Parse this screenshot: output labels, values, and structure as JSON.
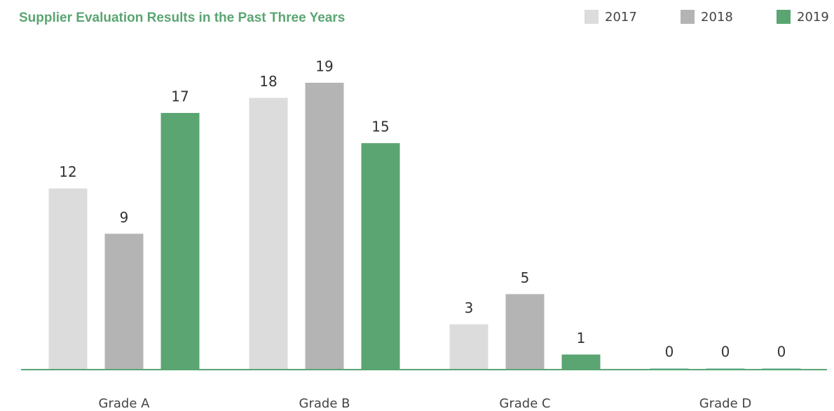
{
  "chart_data": {
    "type": "bar",
    "title": "Supplier Evaluation Results in the Past Three Years",
    "categories": [
      "Grade A",
      "Grade B",
      "Grade C",
      "Grade D"
    ],
    "series": [
      {
        "name": "2017",
        "color": "#dcdcdc",
        "values": [
          12,
          18,
          3,
          0
        ]
      },
      {
        "name": "2018",
        "color": "#b4b4b4",
        "values": [
          9,
          19,
          5,
          0
        ]
      },
      {
        "name": "2019",
        "color": "#5aa572",
        "values": [
          17,
          15,
          1,
          0
        ]
      }
    ],
    "legend": "top-right"
  }
}
